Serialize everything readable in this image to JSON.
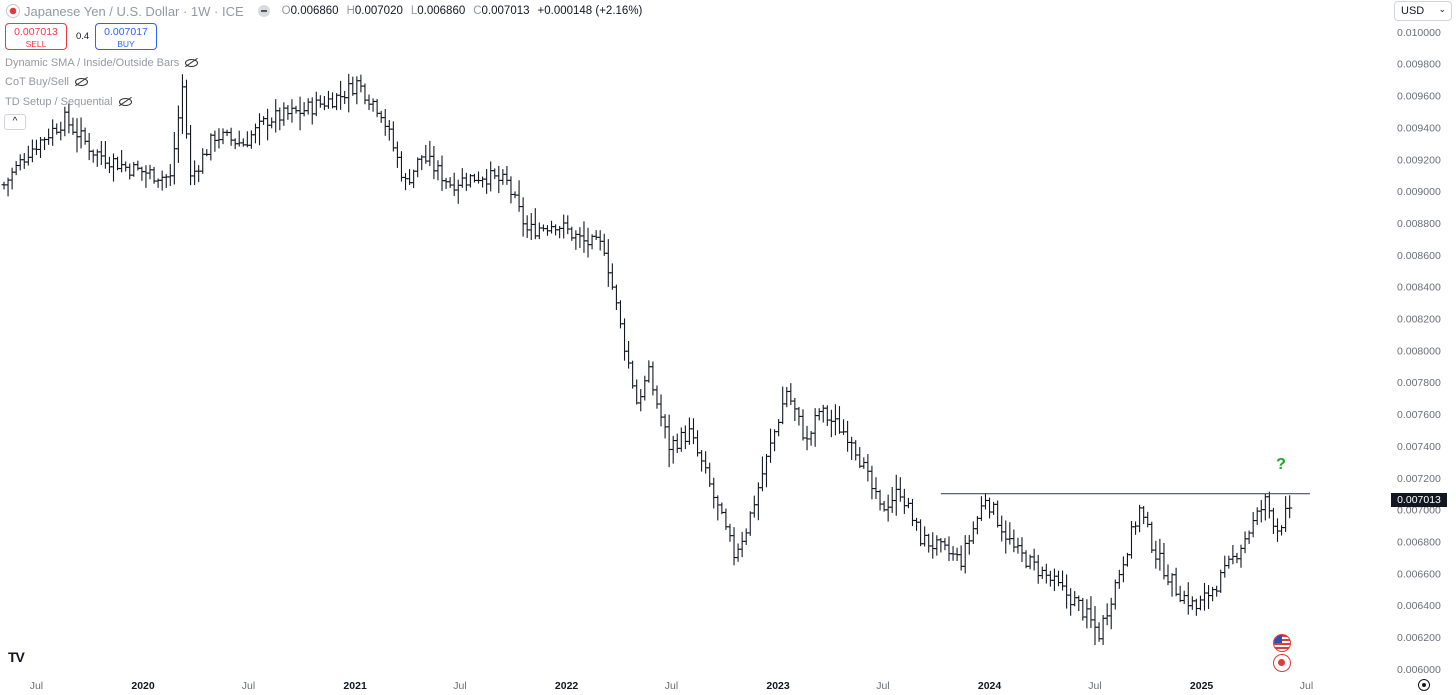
{
  "header": {
    "symbol": "Japanese Yen / U.S. Dollar · 1W · ICE",
    "ohlc": [
      {
        "k": "O",
        "v": "0.006860"
      },
      {
        "k": "H",
        "v": "0.007020"
      },
      {
        "k": "L",
        "v": "0.006860"
      },
      {
        "k": "C",
        "v": "0.007013"
      }
    ],
    "change": "+0.000148 (+2.16%)"
  },
  "trade": {
    "sell_price": "0.007013",
    "sell_label": "SELL",
    "spread": "0.4",
    "buy_price": "0.007017",
    "buy_label": "BUY"
  },
  "indicators": [
    "Dynamic SMA / Inside/Outside Bars",
    "CoT Buy/Sell",
    "TD Setup / Sequential"
  ],
  "currency": "USD",
  "last_price": "0.007013",
  "annotation": "?",
  "colors": {
    "bar": "#131722",
    "annotation": "#22a322",
    "line": "#4a4f5c"
  },
  "chart_data": {
    "type": "ohlc",
    "interval": "1W",
    "ylim": [
      0.00593,
      0.0102
    ],
    "y_ticks": [
      "0.006000",
      "0.006200",
      "0.006400",
      "0.006600",
      "0.006800",
      "0.007000",
      "0.007200",
      "0.007400",
      "0.007600",
      "0.007800",
      "0.008000",
      "0.008200",
      "0.008400",
      "0.008600",
      "0.008800",
      "0.009000",
      "0.009200",
      "0.009400",
      "0.009600",
      "0.009800",
      "0.010000"
    ],
    "x_labels": [
      "Jul",
      "2020",
      "Jul",
      "2021",
      "Jul",
      "2022",
      "Jul",
      "2023",
      "Jul",
      "2024",
      "Jul",
      "2025",
      "Jul"
    ],
    "x_label_dates": [
      "2019-07-01",
      "2020-01-01",
      "2020-07-01",
      "2021-01-01",
      "2021-07-01",
      "2022-01-01",
      "2022-07-01",
      "2023-01-01",
      "2023-07-01",
      "2024-01-01",
      "2024-07-01",
      "2025-01-01",
      "2025-07-01"
    ],
    "x_range": [
      "2019-05-06",
      "2025-07-14"
    ],
    "horizontal_line": {
      "y": 0.0071,
      "start": "2023-10-09",
      "end": "2025-07-07"
    },
    "anchors": [
      [
        "2019-05-06",
        0.00904
      ],
      [
        "2019-06-17",
        0.00925
      ],
      [
        "2019-08-19",
        0.00945
      ],
      [
        "2019-10-07",
        0.00925
      ],
      [
        "2019-12-02",
        0.00915
      ],
      [
        "2020-02-17",
        0.00908
      ],
      [
        "2020-03-09",
        0.00965
      ],
      [
        "2020-03-23",
        0.00908
      ],
      [
        "2020-05-04",
        0.00935
      ],
      [
        "2020-06-22",
        0.0093
      ],
      [
        "2020-08-03",
        0.00945
      ],
      [
        "2020-09-28",
        0.0095
      ],
      [
        "2020-12-07",
        0.0096
      ],
      [
        "2021-01-04",
        0.00968
      ],
      [
        "2021-02-15",
        0.0095
      ],
      [
        "2021-03-29",
        0.00905
      ],
      [
        "2021-04-26",
        0.00922
      ],
      [
        "2021-06-14",
        0.00905
      ],
      [
        "2021-08-09",
        0.0091
      ],
      [
        "2021-09-20",
        0.00905
      ],
      [
        "2021-10-25",
        0.00875
      ],
      [
        "2021-12-13",
        0.0088
      ],
      [
        "2022-01-31",
        0.00868
      ],
      [
        "2022-03-07",
        0.00865
      ],
      [
        "2022-04-04",
        0.00815
      ],
      [
        "2022-05-02",
        0.00768
      ],
      [
        "2022-05-23",
        0.00785
      ],
      [
        "2022-06-27",
        0.0074
      ],
      [
        "2022-08-01",
        0.00748
      ],
      [
        "2022-08-29",
        0.00722
      ],
      [
        "2022-10-17",
        0.00672
      ],
      [
        "2022-11-07",
        0.00688
      ],
      [
        "2022-12-19",
        0.0074
      ],
      [
        "2023-01-16",
        0.00775
      ],
      [
        "2023-02-20",
        0.00742
      ],
      [
        "2023-03-13",
        0.00762
      ],
      [
        "2023-05-08",
        0.00745
      ],
      [
        "2023-06-26",
        0.007
      ],
      [
        "2023-07-31",
        0.00712
      ],
      [
        "2023-09-04",
        0.00682
      ],
      [
        "2023-11-13",
        0.00668
      ],
      [
        "2023-12-25",
        0.00708
      ],
      [
        "2024-02-12",
        0.00675
      ],
      [
        "2024-04-08",
        0.00658
      ],
      [
        "2024-06-03",
        0.0064
      ],
      [
        "2024-07-08",
        0.00622
      ],
      [
        "2024-09-16",
        0.007
      ],
      [
        "2024-10-14",
        0.00672
      ],
      [
        "2024-11-18",
        0.0065
      ],
      [
        "2024-12-23",
        0.00638
      ],
      [
        "2025-02-10",
        0.0066
      ],
      [
        "2025-04-21",
        0.00705
      ],
      [
        "2025-05-12",
        0.00688
      ],
      [
        "2025-06-02",
        0.00701
      ]
    ]
  }
}
